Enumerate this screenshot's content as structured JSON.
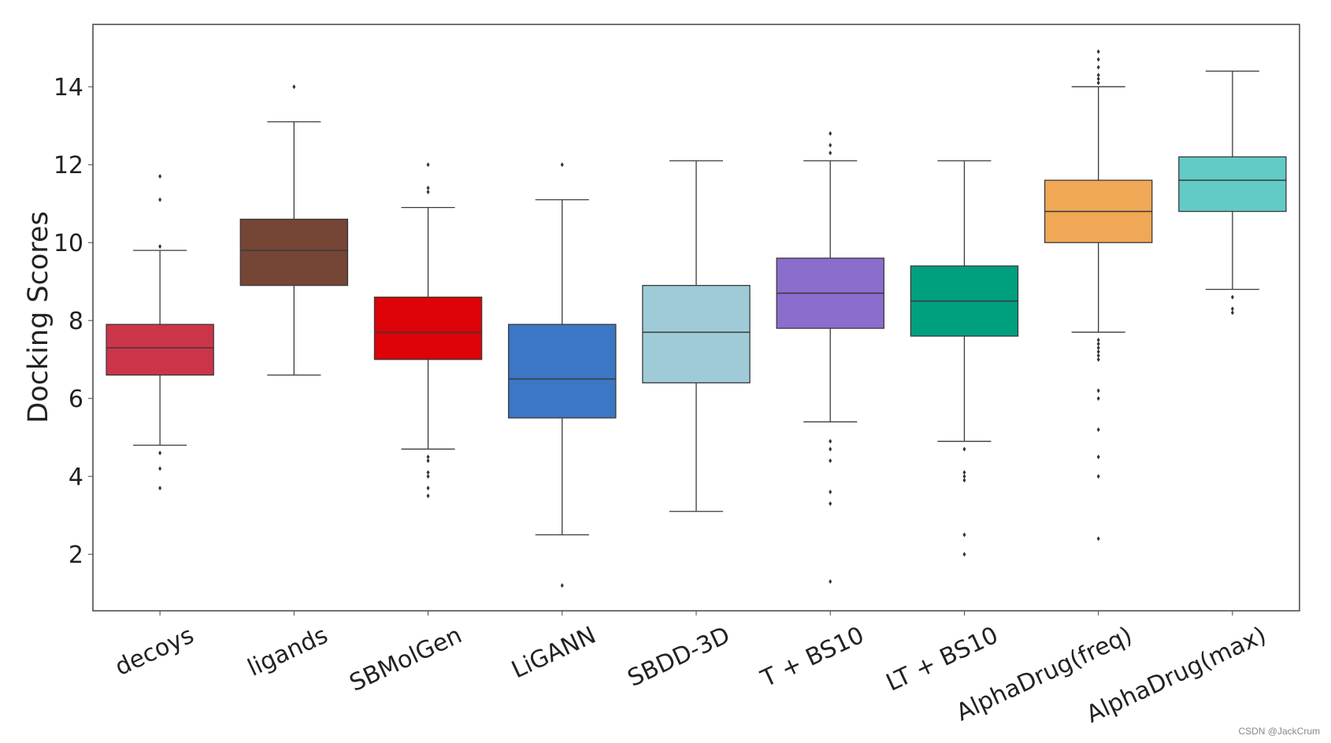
{
  "chart_data": {
    "type": "box",
    "title": "",
    "xlabel": "",
    "ylabel": "Docking Scores",
    "ylim": [
      0.55,
      15.6
    ],
    "yticks": [
      2,
      4,
      6,
      8,
      10,
      12,
      14
    ],
    "grid": false,
    "series": [
      {
        "name": "decoys",
        "color": "#cc3449",
        "q1": 6.6,
        "median": 7.3,
        "q3": 7.9,
        "whisker_low": 4.8,
        "whisker_high": 9.8,
        "outliers": [
          11.7,
          11.1,
          9.9,
          4.6,
          4.2,
          3.7
        ]
      },
      {
        "name": "ligands",
        "color": "#754536",
        "q1": 8.9,
        "median": 9.8,
        "q3": 10.6,
        "whisker_low": 6.6,
        "whisker_high": 13.1,
        "outliers": [
          14.0
        ]
      },
      {
        "name": "SBMolGen",
        "color": "#de0209",
        "q1": 7.0,
        "median": 7.7,
        "q3": 8.6,
        "whisker_low": 4.7,
        "whisker_high": 10.9,
        "outliers": [
          12.0,
          11.4,
          11.3,
          4.5,
          4.4,
          4.1,
          4.0,
          3.7,
          3.5
        ]
      },
      {
        "name": "LiGANN",
        "color": "#3b77c5",
        "q1": 5.5,
        "median": 6.5,
        "q3": 7.9,
        "whisker_low": 2.5,
        "whisker_high": 11.1,
        "outliers": [
          12.0,
          1.2
        ]
      },
      {
        "name": "SBDD-3D",
        "color": "#9fcbd8",
        "q1": 6.4,
        "median": 7.7,
        "q3": 8.9,
        "whisker_low": 3.1,
        "whisker_high": 12.1,
        "outliers": []
      },
      {
        "name": "T + BS10",
        "color": "#8b6dcd",
        "q1": 7.8,
        "median": 8.7,
        "q3": 9.6,
        "whisker_low": 5.4,
        "whisker_high": 12.1,
        "outliers": [
          12.8,
          12.5,
          12.3,
          4.9,
          4.7,
          4.4,
          3.6,
          3.3,
          1.3
        ]
      },
      {
        "name": "LT + BS10",
        "color": "#00a07f",
        "q1": 7.6,
        "median": 8.5,
        "q3": 9.4,
        "whisker_low": 4.9,
        "whisker_high": 12.1,
        "outliers": [
          4.7,
          4.1,
          4.0,
          3.9,
          2.5,
          2.0
        ]
      },
      {
        "name": "AlphaDrug(freq)",
        "color": "#f0a857",
        "q1": 10.0,
        "median": 10.8,
        "q3": 11.6,
        "whisker_low": 7.7,
        "whisker_high": 14.0,
        "outliers": [
          14.9,
          14.7,
          14.5,
          14.3,
          14.2,
          14.1,
          7.5,
          7.4,
          7.3,
          7.2,
          7.1,
          7.0,
          6.2,
          6.0,
          5.2,
          4.5,
          4.0,
          2.4
        ]
      },
      {
        "name": "AlphaDrug(max)",
        "color": "#62cbc6",
        "q1": 10.8,
        "median": 11.6,
        "q3": 12.2,
        "whisker_low": 8.8,
        "whisker_high": 14.4,
        "outliers": [
          8.6,
          8.3,
          8.2
        ]
      }
    ]
  },
  "watermark": "CSDN @JackCrum"
}
